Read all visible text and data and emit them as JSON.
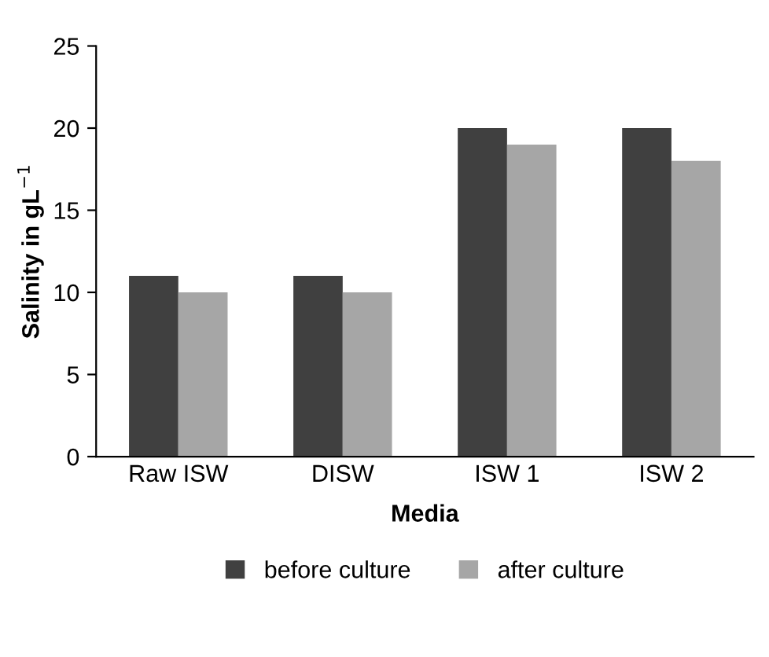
{
  "chart_data": {
    "type": "bar",
    "xlabel": "Media",
    "ylabel": "Salinity in gL$^{−1}$",
    "categories": [
      "Raw ISW",
      "DISW",
      "ISW 1",
      "ISW 2"
    ],
    "series": [
      {
        "name": "before culture",
        "color": "#404040",
        "values": [
          11,
          11,
          20,
          20
        ]
      },
      {
        "name": "after culture",
        "color": "#a6a6a6",
        "values": [
          10,
          10,
          19,
          18
        ]
      }
    ],
    "ylim": [
      0,
      25
    ],
    "yticks": [
      0,
      5,
      10,
      15,
      20,
      25
    ],
    "grid": false,
    "legend": "bottom"
  }
}
